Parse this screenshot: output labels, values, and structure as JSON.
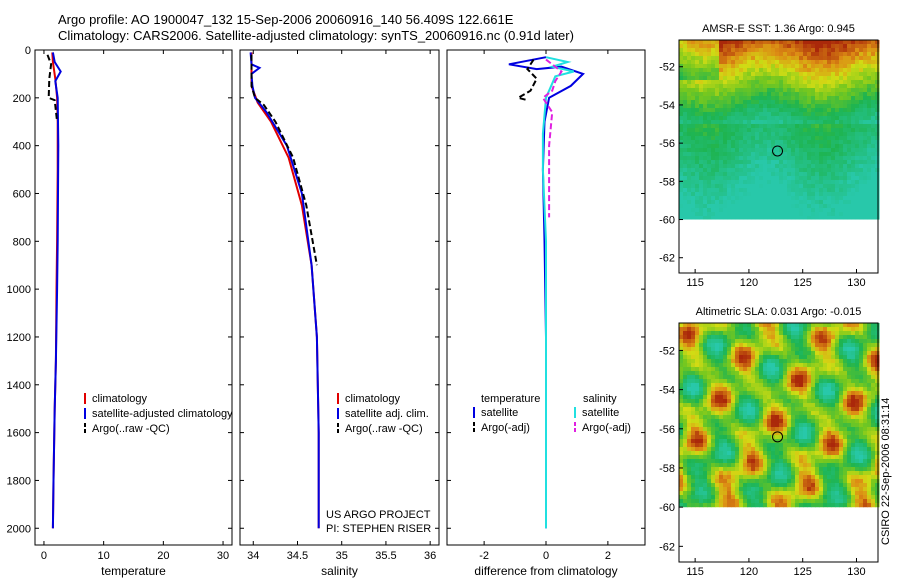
{
  "header": {
    "line1": "Argo profile: AO 1900047_132 15-Sep-2006 20060916_140 56.409S 122.661E",
    "line2": "Climatology: CARS2006. Satellite-adjusted climatology: synTS_20060916.nc (0.91d later)"
  },
  "credit": "CSIRO 22-Sep-2006 08:31:14",
  "colors": {
    "climatology": "#e00000",
    "satellite": "#0000e0",
    "argo": "#000000",
    "cyan": "#20e0e0",
    "magenta": "#e020e0"
  },
  "chart_data": [
    {
      "id": "temperature",
      "type": "line",
      "xlabel": "temperature",
      "xlim": [
        -1.5,
        31.5
      ],
      "xticks": [
        0,
        10,
        20,
        30
      ],
      "ylim": [
        0,
        2070
      ],
      "yticks": [
        0,
        200,
        400,
        600,
        800,
        1000,
        1200,
        1400,
        1600,
        1800,
        2000
      ],
      "legend": [
        "climatology",
        "satellite-adjusted climatology",
        "Argo(..raw -QC)"
      ],
      "series": [
        {
          "name": "climatology",
          "color": "red",
          "dash": false,
          "x": [
            1.4,
            1.5,
            1.9,
            2.2,
            2.3,
            2.3,
            2.2,
            2.1,
            2.0,
            1.8,
            1.6,
            1.5
          ],
          "y": [
            10,
            50,
            120,
            200,
            300,
            500,
            800,
            1000,
            1300,
            1500,
            1800,
            2000
          ]
        },
        {
          "name": "satellite-adjusted climatology",
          "color": "blue",
          "dash": false,
          "x": [
            1.5,
            1.8,
            2.8,
            1.9,
            2.3,
            2.4,
            2.3,
            2.2,
            2.0,
            1.8,
            1.6,
            1.5
          ],
          "y": [
            10,
            50,
            90,
            130,
            200,
            400,
            800,
            1000,
            1300,
            1500,
            1800,
            2000
          ]
        },
        {
          "name": "Argo(..raw -QC)",
          "color": "black",
          "dash": true,
          "x": [
            0.6,
            1.2,
            0.9,
            0.8,
            1.8,
            2.2
          ],
          "y": [
            20,
            60,
            120,
            200,
            210,
            300
          ]
        }
      ]
    },
    {
      "id": "salinity",
      "type": "line",
      "xlabel": "salinity",
      "xlim": [
        33.85,
        36.1
      ],
      "xticks": [
        34,
        34.5,
        35,
        35.5,
        36
      ],
      "xticklabels": [
        "34",
        "34.5",
        "35",
        "35.5",
        "36"
      ],
      "ylim": [
        0,
        2070
      ],
      "yticks": [
        0,
        200,
        400,
        600,
        800,
        1000,
        1200,
        1400,
        1600,
        1800,
        2000
      ],
      "legend": [
        "climatology",
        "satellite adj. clim.",
        "Argo(..raw -QC)"
      ],
      "annotation": [
        "US ARGO PROJECT",
        "PI: STEPHEN RISER"
      ],
      "series": [
        {
          "name": "climatology",
          "color": "red",
          "dash": false,
          "x": [
            33.98,
            33.98,
            34.05,
            34.2,
            34.4,
            34.55,
            34.66,
            34.72,
            34.74,
            34.74
          ],
          "y": [
            10,
            150,
            220,
            300,
            450,
            650,
            900,
            1200,
            1600,
            2000
          ]
        },
        {
          "name": "satellite adj. clim.",
          "color": "blue",
          "dash": false,
          "x": [
            33.97,
            33.98,
            34.07,
            33.98,
            33.99,
            34.02,
            34.15,
            34.38,
            34.55,
            34.66,
            34.72,
            34.74,
            34.74
          ],
          "y": [
            10,
            60,
            75,
            100,
            150,
            200,
            260,
            400,
            600,
            900,
            1200,
            1600,
            2000
          ]
        },
        {
          "name": "Argo(..raw -QC)",
          "color": "black",
          "dash": true,
          "x": [
            33.98,
            33.98,
            34.02,
            34.12,
            34.25,
            34.45,
            34.6,
            34.72
          ],
          "y": [
            20,
            150,
            200,
            230,
            300,
            450,
            650,
            900
          ]
        }
      ]
    },
    {
      "id": "difference",
      "type": "line",
      "xlabel": "difference from climatology",
      "xlim": [
        -3.2,
        3.2
      ],
      "xticks": [
        -2,
        0,
        2
      ],
      "ylim": [
        0,
        2070
      ],
      "yticks": [
        0,
        200,
        400,
        600,
        800,
        1000,
        1200,
        1400,
        1600,
        1800,
        2000
      ],
      "legend_headers": [
        "temperature",
        "salinity"
      ],
      "legend_left": [
        "satellite",
        "Argo(-adj)"
      ],
      "legend_right": [
        "satellite",
        "Argo(-adj)"
      ],
      "series": [
        {
          "name": "temperature satellite",
          "color": "blue",
          "dash": false,
          "x": [
            0,
            -1.2,
            -0.3,
            0.5,
            1.2,
            0.8,
            0.1,
            -0.05,
            -0.1,
            -0.05,
            0,
            0
          ],
          "y": [
            30,
            60,
            80,
            70,
            100,
            150,
            200,
            300,
            500,
            800,
            1200,
            2000
          ]
        },
        {
          "name": "salinity satellite",
          "color": "cyan",
          "dash": false,
          "x": [
            0,
            0.7,
            0.2,
            0.9,
            0.3,
            0,
            -0.1,
            -0.1,
            0,
            0,
            0,
            0
          ],
          "y": [
            30,
            50,
            70,
            90,
            110,
            200,
            350,
            500,
            800,
            1050,
            1300,
            2000
          ]
        },
        {
          "name": "temperature Argo(-adj)",
          "color": "black",
          "dash": true,
          "x": [
            -0.4,
            -0.6,
            -0.3,
            -0.5,
            -0.9,
            -0.6
          ],
          "y": [
            40,
            80,
            120,
            170,
            200,
            210
          ]
        },
        {
          "name": "salinity Argo(-adj)",
          "color": "magenta",
          "dash": true,
          "x": [
            0,
            0.5,
            0.3,
            0.2,
            -0.1,
            0.2,
            0.1,
            0.1
          ],
          "y": [
            40,
            90,
            130,
            170,
            200,
            260,
            400,
            700
          ]
        }
      ]
    },
    {
      "id": "sst_map",
      "type": "heatmap",
      "title": "AMSR-E SST: 1.36 Argo: 0.945",
      "xlim": [
        113.5,
        132
      ],
      "ylim": [
        -62.8,
        -50.6
      ],
      "xticks": [
        115,
        120,
        125,
        130
      ],
      "yticks": [
        -52,
        -54,
        -56,
        -58,
        -60,
        -62
      ],
      "data_south_limit": -60,
      "marker": {
        "lon": 122.66,
        "lat": -56.41
      }
    },
    {
      "id": "sla_map",
      "type": "heatmap",
      "title": "Altimetric SLA: 0.031 Argo: -0.015",
      "xlim": [
        113.5,
        132
      ],
      "ylim": [
        -62.8,
        -50.6
      ],
      "xticks": [
        115,
        120,
        125,
        130
      ],
      "yticks": [
        -52,
        -54,
        -56,
        -58,
        -60,
        -62
      ],
      "data_south_limit": -60,
      "marker": {
        "lon": 122.66,
        "lat": -56.41
      }
    }
  ]
}
